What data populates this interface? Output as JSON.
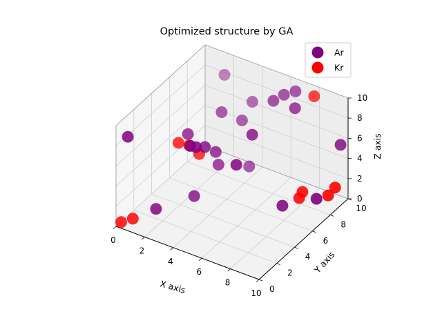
{
  "chart_data": {
    "type": "scatter",
    "title": "Optimized structure by GA",
    "xlabel": "X axis",
    "ylabel": "Y axis",
    "zlabel": "Z axis",
    "x_ticks": [
      "0",
      "2",
      "4",
      "6",
      "8",
      "10"
    ],
    "y_ticks": [
      "0",
      "2",
      "4",
      "6",
      "8",
      "10"
    ],
    "z_ticks": [
      "0",
      "2",
      "4",
      "6",
      "8",
      "10"
    ],
    "xlim": [
      0,
      10
    ],
    "ylim": [
      0,
      10
    ],
    "zlim": [
      0,
      10
    ],
    "grid": true,
    "legend_position": "top-right",
    "series": [
      {
        "name": "Ar",
        "color": "#800080",
        "points": [
          [
            0.7,
            0.2,
            9.1
          ],
          [
            1.8,
            1.6,
            1.4
          ],
          [
            3.1,
            3.8,
            1.6
          ],
          [
            2.6,
            3.9,
            7.4
          ],
          [
            5.3,
            5.0,
            4.9
          ],
          [
            5.9,
            8.2,
            9.0
          ],
          [
            7.1,
            8.7,
            8.5
          ],
          [
            2.6,
            8.0,
            10.0
          ],
          [
            6.2,
            8.9,
            9.2
          ],
          [
            3.8,
            5.1,
            5.3
          ],
          [
            4.3,
            8.4,
            7.9
          ],
          [
            4.2,
            7.4,
            6.8
          ],
          [
            3.4,
            6.4,
            8.0
          ],
          [
            5.6,
            6.3,
            7.0
          ],
          [
            3.6,
            4.2,
            6.4
          ],
          [
            4.7,
            7.4,
            2.5
          ],
          [
            3.8,
            5.4,
            3.8
          ],
          [
            3.2,
            3.2,
            7.1
          ],
          [
            3.6,
            3.2,
            7.2
          ],
          [
            9.1,
            7.9,
            1.2
          ],
          [
            7.4,
            6.8,
            0.5
          ],
          [
            9.6,
            9.8,
            5.3
          ],
          [
            6.7,
            9.4,
            9.4
          ]
        ]
      },
      {
        "name": "Kr",
        "color": "#ff0000",
        "points": [
          [
            0.3,
            0.1,
            0.5
          ],
          [
            0.8,
            0.6,
            0.7
          ],
          [
            2.5,
            3.0,
            7.2
          ],
          [
            3.0,
            3.4,
            6.9
          ],
          [
            3.2,
            4.2,
            5.5
          ],
          [
            8.2,
            7.4,
            1.2
          ],
          [
            8.3,
            7.6,
            1.7
          ],
          [
            9.6,
            8.4,
            1.4
          ],
          [
            9.9,
            8.7,
            2.1
          ],
          [
            8.0,
            9.4,
            9.6
          ]
        ]
      }
    ]
  }
}
